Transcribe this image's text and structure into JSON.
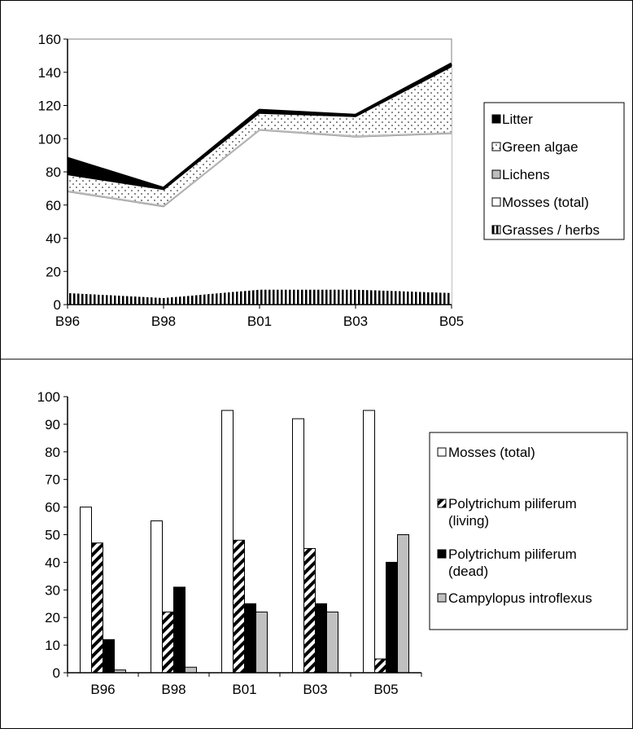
{
  "chart_data": [
    {
      "type": "area",
      "stacked": true,
      "categories": [
        "B96",
        "B98",
        "B01",
        "B03",
        "B05"
      ],
      "ylim": [
        0,
        160
      ],
      "yticks": [
        0,
        20,
        40,
        60,
        80,
        100,
        120,
        140,
        160
      ],
      "grid": false,
      "legend_position": "right",
      "series": [
        {
          "name": "Grasses / herbs",
          "values": [
            7,
            4,
            9,
            9,
            7
          ],
          "fill": "vertical-stripes"
        },
        {
          "name": "Mosses (total)",
          "values": [
            61,
            55,
            96,
            92,
            96
          ],
          "fill": "#ffffff"
        },
        {
          "name": "Lichens",
          "values": [
            1,
            1,
            1,
            1,
            1
          ],
          "fill": "#bdbdbd"
        },
        {
          "name": "Green algae",
          "values": [
            9,
            9,
            9,
            11,
            39
          ],
          "fill": "dots"
        },
        {
          "name": "Litter",
          "values": [
            10,
            1,
            2,
            1,
            2
          ],
          "fill": "#000000"
        }
      ],
      "legend_order": [
        "Litter",
        "Green algae",
        "Lichens",
        "Mosses (total)",
        "Grasses / herbs"
      ]
    },
    {
      "type": "bar",
      "categories": [
        "B96",
        "B98",
        "B01",
        "B03",
        "B05"
      ],
      "ylim": [
        0,
        100
      ],
      "yticks": [
        0,
        10,
        20,
        30,
        40,
        50,
        60,
        70,
        80,
        90,
        100
      ],
      "grid": false,
      "legend_position": "right",
      "series": [
        {
          "name": "Mosses (total)",
          "values": [
            60,
            55,
            95,
            92,
            95
          ],
          "fill": "#ffffff"
        },
        {
          "name_lines": [
            "Polytrichum piliferum",
            "(living)"
          ],
          "values": [
            47,
            22,
            48,
            45,
            5
          ],
          "fill": "diagonal-stripes"
        },
        {
          "name_lines": [
            "Polytrichum piliferum",
            "(dead)"
          ],
          "values": [
            12,
            31,
            25,
            25,
            40
          ],
          "fill": "#000000"
        },
        {
          "name": "Campylopus introflexus",
          "values": [
            1,
            2,
            22,
            22,
            50
          ],
          "fill": "#c0c0c0"
        }
      ]
    }
  ]
}
